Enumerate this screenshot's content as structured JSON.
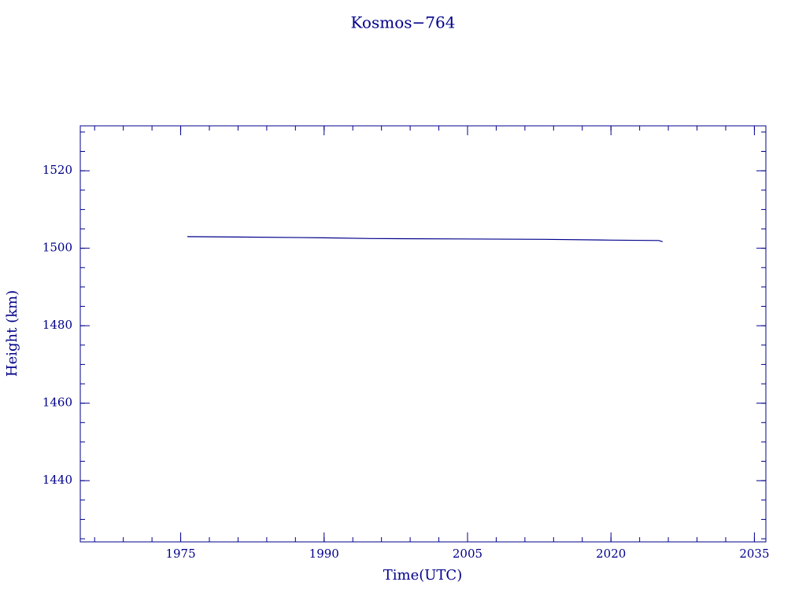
{
  "chart_data": {
    "type": "line",
    "title": "Kosmos−764",
    "x_label": "Time(UTC)",
    "y_label": "Height (km)",
    "x": [
      1975.7,
      1981,
      1990,
      1995,
      2004,
      2013,
      2020,
      2025,
      2025.4
    ],
    "series": [
      {
        "color": "#00008b",
        "values": [
          1503.0,
          1502.9,
          1502.7,
          1502.5,
          1502.4,
          1502.3,
          1502.1,
          1502.0,
          1501.7
        ]
      }
    ],
    "xlim": [
      1964.5,
      2036.2
    ],
    "xticks": [
      1975,
      1990,
      2005,
      2020,
      2035
    ],
    "ylim": [
      1424.2,
      1531.6
    ],
    "yticks": [
      1440,
      1460,
      1480,
      1500,
      1520
    ],
    "grid": false
  }
}
